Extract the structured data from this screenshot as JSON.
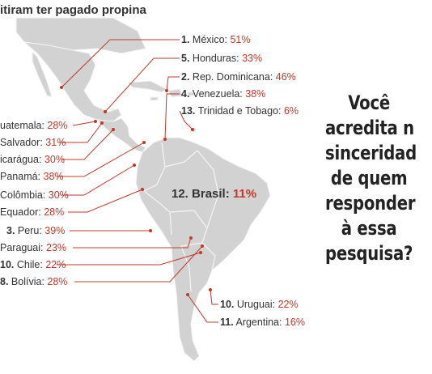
{
  "title": "itiram ter pagado propina",
  "labels": [
    {
      "id": "mexico",
      "rank": "1.",
      "name": "México:",
      "pct": "51%"
    },
    {
      "id": "honduras",
      "rank": "5.",
      "name": "Honduras:",
      "pct": "33%"
    },
    {
      "id": "rep_dominicana",
      "rank": "2.",
      "name": "Rep. Dominicana:",
      "pct": "46%"
    },
    {
      "id": "venezuela",
      "rank": "4.",
      "name": "Venezuela:",
      "pct": "38%"
    },
    {
      "id": "trinidad",
      "rank": "13.",
      "name": "Trinidad e Tobago:",
      "pct": "6%"
    },
    {
      "id": "guatemala",
      "rank": "",
      "name": "uatemala:",
      "pct": "28%"
    },
    {
      "id": "el_salvador",
      "rank": "",
      "name": "Salvador:",
      "pct": "31%"
    },
    {
      "id": "nicaragua",
      "rank": "",
      "name": "icarágua:",
      "pct": "30%"
    },
    {
      "id": "panama",
      "rank": "",
      "name": "Panamá:",
      "pct": "38%"
    },
    {
      "id": "colombia",
      "rank": "",
      "name": "Colômbia:",
      "pct": "30%"
    },
    {
      "id": "equador",
      "rank": "",
      "name": "Equador:",
      "pct": "28%"
    },
    {
      "id": "brasil",
      "rank": "12.",
      "name": "Brasil:",
      "pct": "11%"
    },
    {
      "id": "peru",
      "rank": "3.",
      "name": "Peru:",
      "pct": "39%"
    },
    {
      "id": "paraguai",
      "rank": "",
      "name": "Paraguai:",
      "pct": "23%"
    },
    {
      "id": "chile",
      "rank": "10.",
      "name": "Chile:",
      "pct": "22%"
    },
    {
      "id": "bolivia",
      "rank": "8.",
      "name": "Bolívia:",
      "pct": "28%"
    },
    {
      "id": "uruguai",
      "rank": "10.",
      "name": "Uruguai:",
      "pct": "22%"
    },
    {
      "id": "argentina",
      "rank": "11.",
      "name": "Argentina:",
      "pct": "16%"
    }
  ],
  "question": [
    "Você",
    "acredita n",
    "sinceridad",
    "de quem",
    "responder",
    "à essa",
    "pesquisa?"
  ],
  "colors": {
    "land": "#d2d2d2",
    "border": "#f5f5f5",
    "leader": "#c0392b",
    "percent": "#c0392b",
    "text": "#333333"
  }
}
